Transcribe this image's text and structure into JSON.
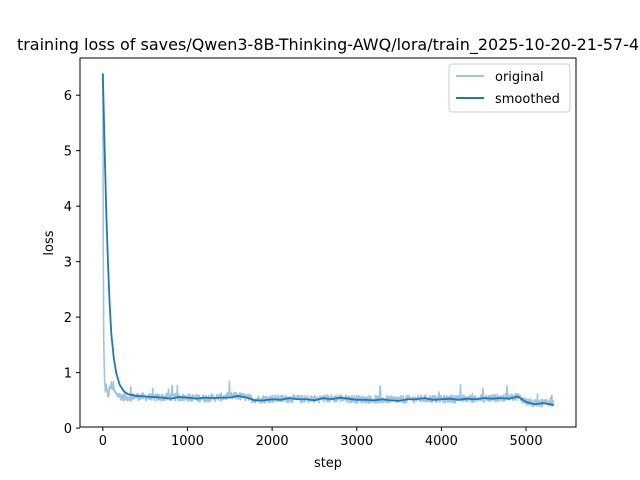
{
  "chart_data": {
    "type": "line",
    "title": "training loss of saves/Qwen3-8B-Thinking-AWQ/lora/train_2025-10-20-21-57-4",
    "xlabel": "step",
    "ylabel": "loss",
    "xlim": [
      -270,
      5590
    ],
    "ylim": [
      0.02,
      6.67
    ],
    "xticks": [
      0,
      1000,
      2000,
      3000,
      4000,
      5000
    ],
    "yticks": [
      0,
      1,
      2,
      3,
      4,
      5,
      6
    ],
    "xtick_labels": [
      "0",
      "1000",
      "2000",
      "3000",
      "4000",
      "5000"
    ],
    "ytick_labels": [
      "0",
      "1",
      "2",
      "3",
      "4",
      "5",
      "6"
    ],
    "grid": false,
    "legend_position": "top-right",
    "legend": [
      "original",
      "smoothed"
    ],
    "series": [
      {
        "name": "original",
        "color": "#9ec5e3",
        "noise_amplitude": 0.07,
        "points": [
          [
            0,
            6.38
          ],
          [
            5,
            3.2
          ],
          [
            10,
            1.6
          ],
          [
            20,
            0.88
          ],
          [
            30,
            0.65
          ],
          [
            40,
            0.72
          ],
          [
            60,
            0.58
          ],
          [
            80,
            0.7
          ],
          [
            100,
            0.78
          ],
          [
            150,
            0.62
          ],
          [
            200,
            0.58
          ],
          [
            250,
            0.55
          ],
          [
            300,
            0.56
          ],
          [
            400,
            0.57
          ],
          [
            600,
            0.55
          ],
          [
            800,
            0.56
          ],
          [
            1000,
            0.55
          ],
          [
            1200,
            0.54
          ],
          [
            1400,
            0.56
          ],
          [
            1600,
            0.58
          ],
          [
            1800,
            0.52
          ],
          [
            2000,
            0.53
          ],
          [
            2200,
            0.53
          ],
          [
            2400,
            0.52
          ],
          [
            2600,
            0.53
          ],
          [
            2800,
            0.54
          ],
          [
            3000,
            0.52
          ],
          [
            3200,
            0.52
          ],
          [
            3400,
            0.51
          ],
          [
            3600,
            0.52
          ],
          [
            3800,
            0.53
          ],
          [
            4000,
            0.52
          ],
          [
            4200,
            0.53
          ],
          [
            4400,
            0.53
          ],
          [
            4600,
            0.54
          ],
          [
            4800,
            0.55
          ],
          [
            4900,
            0.57
          ],
          [
            5000,
            0.48
          ],
          [
            5100,
            0.44
          ],
          [
            5200,
            0.45
          ],
          [
            5320,
            0.44
          ]
        ]
      },
      {
        "name": "smoothed",
        "color": "#1f77b4",
        "points": [
          [
            0,
            6.38
          ],
          [
            20,
            5.1
          ],
          [
            40,
            3.9
          ],
          [
            60,
            3.0
          ],
          [
            80,
            2.25
          ],
          [
            100,
            1.7
          ],
          [
            130,
            1.25
          ],
          [
            160,
            0.98
          ],
          [
            200,
            0.78
          ],
          [
            250,
            0.66
          ],
          [
            300,
            0.61
          ],
          [
            400,
            0.58
          ],
          [
            500,
            0.57
          ],
          [
            600,
            0.56
          ],
          [
            700,
            0.55
          ],
          [
            800,
            0.53
          ],
          [
            900,
            0.56
          ],
          [
            1000,
            0.55
          ],
          [
            1100,
            0.53
          ],
          [
            1200,
            0.55
          ],
          [
            1300,
            0.54
          ],
          [
            1400,
            0.55
          ],
          [
            1500,
            0.55
          ],
          [
            1600,
            0.58
          ],
          [
            1700,
            0.55
          ],
          [
            1800,
            0.5
          ],
          [
            1900,
            0.5
          ],
          [
            2000,
            0.52
          ],
          [
            2100,
            0.51
          ],
          [
            2200,
            0.54
          ],
          [
            2300,
            0.52
          ],
          [
            2400,
            0.52
          ],
          [
            2500,
            0.5
          ],
          [
            2600,
            0.54
          ],
          [
            2700,
            0.52
          ],
          [
            2800,
            0.55
          ],
          [
            2900,
            0.53
          ],
          [
            3000,
            0.51
          ],
          [
            3100,
            0.51
          ],
          [
            3200,
            0.5
          ],
          [
            3300,
            0.52
          ],
          [
            3400,
            0.5
          ],
          [
            3500,
            0.49
          ],
          [
            3600,
            0.52
          ],
          [
            3700,
            0.52
          ],
          [
            3800,
            0.54
          ],
          [
            3900,
            0.51
          ],
          [
            4000,
            0.52
          ],
          [
            4100,
            0.53
          ],
          [
            4200,
            0.51
          ],
          [
            4300,
            0.53
          ],
          [
            4400,
            0.52
          ],
          [
            4500,
            0.54
          ],
          [
            4600,
            0.53
          ],
          [
            4700,
            0.54
          ],
          [
            4800,
            0.53
          ],
          [
            4900,
            0.57
          ],
          [
            4950,
            0.52
          ],
          [
            5000,
            0.47
          ],
          [
            5100,
            0.43
          ],
          [
            5200,
            0.45
          ],
          [
            5320,
            0.42
          ]
        ]
      }
    ]
  }
}
